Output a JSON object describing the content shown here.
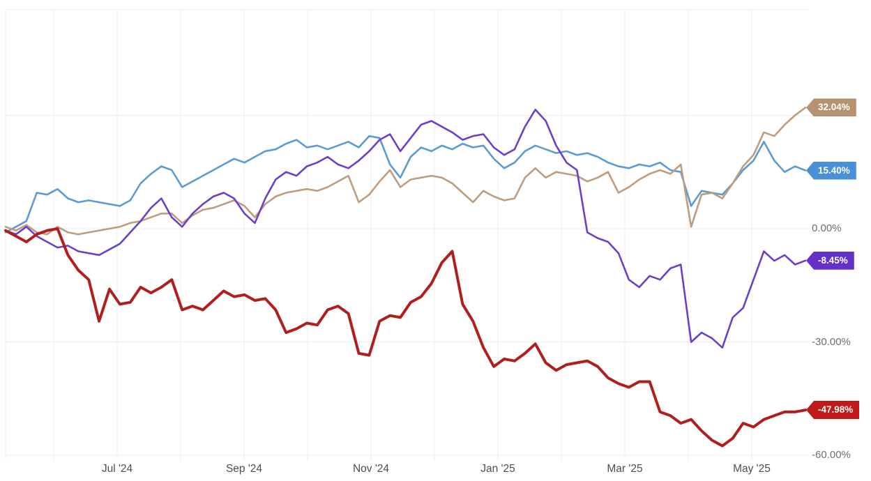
{
  "chart_data": {
    "type": "line",
    "title": "",
    "grid": true,
    "legend_position": "none (end-of-line value badges on right)",
    "x_axis": {
      "tick_labels": [
        "Jul '24",
        "Sep '24",
        "Nov '24",
        "Jan '25",
        "Mar '25",
        "May '25"
      ]
    },
    "y_axis": {
      "side": "right",
      "unit": "%",
      "tick_labels": [
        "0.00%",
        "-30.00%",
        "-60.00%"
      ],
      "tick_values": [
        0,
        -30,
        -60
      ],
      "grid_values": [
        30,
        0,
        -30,
        -60
      ],
      "ylim": [
        -62,
        58
      ]
    },
    "series": [
      {
        "name": "blue-line",
        "color": "#5B9BD5",
        "badge_color": "#4A90D9",
        "line_width": 2.6,
        "final_label": "15.40%",
        "final_value": 15.4,
        "values": [
          -1,
          0.5,
          2,
          9.5,
          9,
          10.5,
          8,
          7,
          7.5,
          7,
          6.5,
          6,
          7.5,
          12,
          14.5,
          16.5,
          15.5,
          11,
          12.5,
          14,
          15.5,
          17,
          18.5,
          17.5,
          19,
          20.5,
          21,
          22.5,
          23.5,
          21.5,
          22,
          21,
          22,
          23,
          21.5,
          24.5,
          24,
          17,
          13.5,
          19,
          21.5,
          20.5,
          22,
          21,
          22.5,
          21.5,
          22,
          18.5,
          16,
          17.5,
          20.5,
          22,
          21,
          20,
          20.5,
          19.5,
          20,
          19,
          17.5,
          16.5,
          16,
          17,
          16.5,
          17.5,
          15.5,
          15,
          6,
          10,
          9.5,
          9,
          12,
          15.5,
          18,
          23,
          18,
          15,
          16.5,
          15.4
        ]
      },
      {
        "name": "tan-line",
        "color": "#BE9C7C",
        "badge_color": "#B6926F",
        "line_width": 2.6,
        "final_label": "32.04%",
        "final_value": 32.04,
        "values": [
          0.5,
          -0.5,
          1,
          -1,
          -1.5,
          0.5,
          -1,
          -1.5,
          -1,
          -0.5,
          0,
          0.5,
          1.5,
          2,
          3,
          4,
          4,
          1.5,
          3.5,
          5,
          5.5,
          6.5,
          7.5,
          6,
          3,
          6.5,
          8.5,
          9.5,
          10,
          10.5,
          10,
          11,
          12.5,
          14,
          7,
          9,
          12.5,
          15.5,
          11,
          13,
          13.5,
          14,
          13.5,
          12,
          9.5,
          7,
          10,
          8.5,
          7.5,
          8,
          13.5,
          16,
          13.5,
          15,
          14.5,
          14,
          12.5,
          13.5,
          15,
          9.5,
          11,
          13,
          14.5,
          15.5,
          14.5,
          17,
          0.5,
          9,
          9.5,
          8,
          12,
          16.5,
          19.5,
          25.5,
          24.5,
          27.5,
          30,
          32.04
        ]
      },
      {
        "name": "purple-line",
        "color": "#6B3FC9",
        "badge_color": "#6430C8",
        "line_width": 2.6,
        "final_label": "-8.45%",
        "final_value": -8.45,
        "values": [
          -0.5,
          -1.5,
          0.5,
          -2,
          -3.5,
          -5,
          -4.5,
          -6,
          -6.5,
          -7,
          -5.5,
          -4,
          -1,
          2,
          5.5,
          8,
          3,
          0.5,
          4,
          6.5,
          8.5,
          9.5,
          8,
          4,
          1.5,
          8,
          13,
          15,
          14,
          16.5,
          17.5,
          19,
          17,
          16,
          18,
          20.5,
          23.5,
          25,
          20.5,
          24,
          27.5,
          28.5,
          27,
          25.5,
          23.5,
          24.5,
          25,
          21.5,
          19.5,
          21,
          27,
          31.5,
          28.5,
          22,
          17.5,
          15.5,
          -1,
          -2.5,
          -3.5,
          -6.5,
          -13.5,
          -15.5,
          -12.5,
          -13.5,
          -10.5,
          -9.5,
          -30,
          -27.5,
          -29,
          -31.5,
          -23.5,
          -21,
          -13.5,
          -6,
          -8.5,
          -7,
          -9.5,
          -8.45
        ]
      },
      {
        "name": "red-line",
        "color": "#B01E1E",
        "badge_color": "#C11A1A",
        "line_width": 4,
        "final_label": "-47.98%",
        "final_value": -47.98,
        "values": [
          -0.5,
          -2,
          -3.5,
          -1.5,
          -0.5,
          0,
          -7,
          -11,
          -13.5,
          -24.5,
          -16,
          -20,
          -19.5,
          -15.5,
          -17,
          -15.5,
          -13.5,
          -21.5,
          -20.5,
          -21.5,
          -19,
          -16.5,
          -18,
          -17.5,
          -19,
          -18.5,
          -21.5,
          -27.5,
          -26.5,
          -25,
          -25.5,
          -21.5,
          -20.5,
          -22.5,
          -33,
          -33.5,
          -24.5,
          -23,
          -23.5,
          -19.5,
          -18,
          -14.5,
          -9,
          -6,
          -20,
          -24.5,
          -31.5,
          -36.5,
          -34.5,
          -35,
          -33,
          -30.5,
          -35.5,
          -37.5,
          -36,
          -35.5,
          -35,
          -36.5,
          -39.5,
          -41,
          -42,
          -40.5,
          -40.5,
          -48.5,
          -49.5,
          -51.5,
          -50.5,
          -53.5,
          -56,
          -57.5,
          -55.5,
          -51.5,
          -52.5,
          -50.5,
          -49.5,
          -48.5,
          -48.5,
          -47.98
        ]
      }
    ]
  }
}
